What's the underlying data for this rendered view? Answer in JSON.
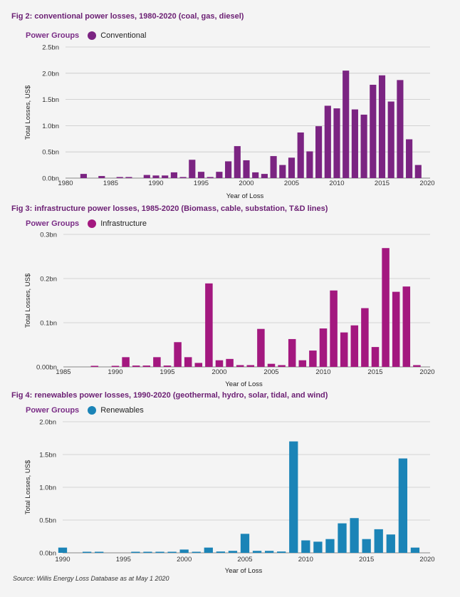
{
  "source_note": "Source: Willis Energy Loss Database as at May 1 2020",
  "chart_data": [
    {
      "type": "bar",
      "title": "Fig 2: conventional power losses, 1980-2020 (coal, gas, diesel)",
      "legend_title": "Power Groups",
      "legend_placement": "top-left",
      "series_name": "Conventional",
      "color": "#7b2482",
      "xlabel": "Year of Loss",
      "ylabel": "Total Losses, US$",
      "ylim": [
        0,
        2.5
      ],
      "xlim": [
        1980,
        2020
      ],
      "grid": true,
      "yticks": [
        0,
        0.5,
        1.0,
        1.5,
        2.0,
        2.5
      ],
      "ytick_labels": [
        "0.0bn",
        "0.5bn",
        "1.0bn",
        "1.5bn",
        "2.0bn",
        "2.5bn"
      ],
      "xticks": [
        1980,
        1985,
        1990,
        1995,
        2000,
        2005,
        2010,
        2015,
        2020
      ],
      "x": [
        1982,
        1984,
        1986,
        1987,
        1989,
        1990,
        1991,
        1992,
        1993,
        1994,
        1995,
        1996,
        1997,
        1998,
        1999,
        2000,
        2001,
        2002,
        2003,
        2004,
        2005,
        2006,
        2007,
        2008,
        2009,
        2010,
        2011,
        2012,
        2013,
        2014,
        2015,
        2016,
        2017,
        2018,
        2019
      ],
      "values": [
        0.08,
        0.04,
        0.01,
        0.01,
        0.06,
        0.05,
        0.05,
        0.11,
        0.01,
        0.35,
        0.12,
        0.02,
        0.12,
        0.32,
        0.61,
        0.34,
        0.11,
        0.08,
        0.42,
        0.25,
        0.39,
        0.87,
        0.51,
        0.99,
        1.38,
        1.33,
        2.05,
        1.31,
        1.21,
        1.78,
        1.96,
        1.46,
        1.87,
        0.74,
        0.25
      ]
    },
    {
      "type": "bar",
      "title": "Fig 3: infrastructure power losses, 1985-2020 (Biomass, cable, substation, T&D lines)",
      "legend_title": "Power Groups",
      "legend_placement": "top-left",
      "series_name": "Infrastructure",
      "color": "#a3187f",
      "xlabel": "Year of Loss",
      "ylabel": "Total Losses, US$",
      "ylim": [
        0,
        0.3
      ],
      "xlim": [
        1985,
        2020
      ],
      "grid": true,
      "yticks": [
        0,
        0.1,
        0.2,
        0.3
      ],
      "ytick_labels": [
        "0.00bn",
        "0.1bn",
        "0.2bn",
        "0.3bn"
      ],
      "xticks": [
        1985,
        1990,
        1995,
        2000,
        2005,
        2010,
        2015,
        2020
      ],
      "x": [
        1988,
        1990,
        1991,
        1992,
        1993,
        1994,
        1995,
        1996,
        1997,
        1998,
        1999,
        2000,
        2001,
        2002,
        2003,
        2004,
        2005,
        2006,
        2007,
        2008,
        2009,
        2010,
        2011,
        2012,
        2013,
        2014,
        2015,
        2016,
        2017,
        2018,
        2019
      ],
      "values": [
        0.002,
        0.002,
        0.022,
        0.003,
        0.003,
        0.022,
        0.003,
        0.056,
        0.022,
        0.009,
        0.189,
        0.015,
        0.018,
        0.004,
        0.004,
        0.086,
        0.007,
        0.004,
        0.063,
        0.015,
        0.037,
        0.087,
        0.173,
        0.078,
        0.094,
        0.133,
        0.045,
        0.269,
        0.17,
        0.182,
        0.004
      ]
    },
    {
      "type": "bar",
      "title": "Fig 4: renewables power losses, 1990-2020 (geothermal, hydro, solar, tidal, and wind)",
      "legend_title": "Power Groups",
      "legend_placement": "top-left",
      "series_name": "Renewables",
      "color": "#1b84b7",
      "xlabel": "Year of Loss",
      "ylabel": "Total Losses, US$",
      "ylim": [
        0,
        2.0
      ],
      "xlim": [
        1990,
        2020
      ],
      "grid": true,
      "yticks": [
        0,
        0.5,
        1.0,
        1.5,
        2.0
      ],
      "ytick_labels": [
        "0.0bn",
        "0.5bn",
        "1.0bn",
        "1.5bn",
        "2.0bn"
      ],
      "xticks": [
        1990,
        1995,
        2000,
        2005,
        2010,
        2015,
        2020
      ],
      "x": [
        1990,
        1992,
        1993,
        1996,
        1997,
        1998,
        1999,
        2000,
        2001,
        2002,
        2003,
        2004,
        2005,
        2006,
        2007,
        2008,
        2009,
        2010,
        2011,
        2012,
        2013,
        2014,
        2015,
        2016,
        2017,
        2018,
        2019
      ],
      "values": [
        0.08,
        0.01,
        0.01,
        0.01,
        0.01,
        0.01,
        0.01,
        0.05,
        0.01,
        0.08,
        0.02,
        0.03,
        0.29,
        0.03,
        0.03,
        0.02,
        1.7,
        0.19,
        0.17,
        0.21,
        0.45,
        0.53,
        0.21,
        0.36,
        0.28,
        1.44,
        0.08
      ]
    }
  ]
}
